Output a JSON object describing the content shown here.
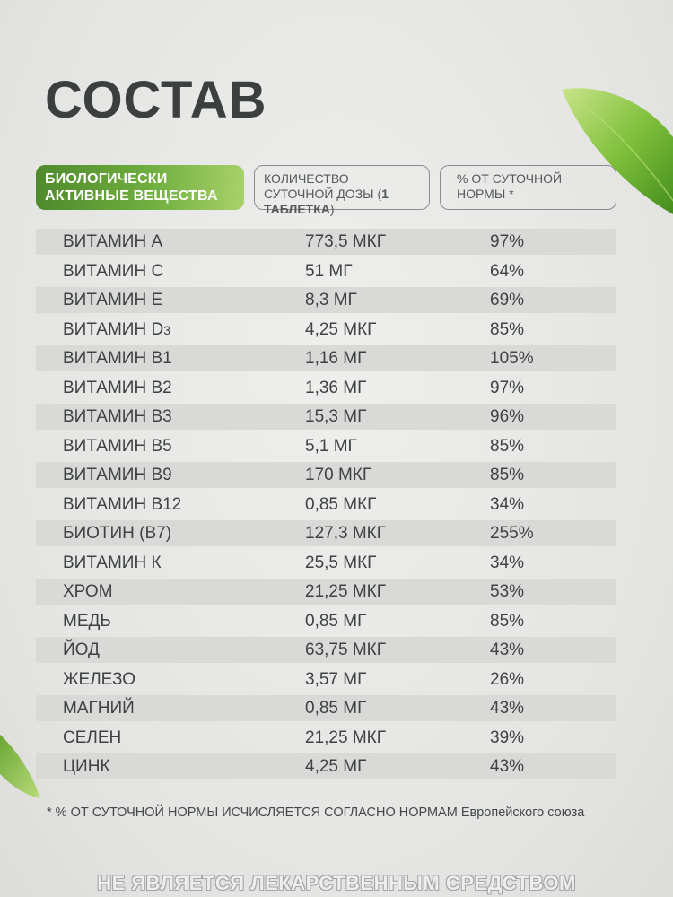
{
  "title": "СОСТАВ",
  "headers": {
    "substances": "БИОЛОГИЧЕСКИ АКТИВНЫЕ ВЕЩЕСТВА",
    "quantity_prefix": "КОЛИЧЕСТВО СУТОЧНОЙ ДОЗЫ (",
    "quantity_bold": "1 ТАБЛЕТКА",
    "quantity_suffix": ")",
    "percent": "% ОТ СУТОЧНОЙ НОРМЫ *"
  },
  "rows": [
    {
      "name": "ВИТАМИН А",
      "amount": "773,5 МКГ",
      "percent": "97%"
    },
    {
      "name": "ВИТАМИН С",
      "amount": "51 МГ",
      "percent": "64%"
    },
    {
      "name": "ВИТАМИН Е",
      "amount": "8,3 МГ",
      "percent": "69%"
    },
    {
      "name": "ВИТАМИН D",
      "name_sub": "3",
      "amount": "4,25 МКГ",
      "percent": "85%"
    },
    {
      "name": "ВИТАМИН В1",
      "amount": "1,16 МГ",
      "percent": "105%"
    },
    {
      "name": "ВИТАМИН В2",
      "amount": "1,36 МГ",
      "percent": "97%"
    },
    {
      "name": "ВИТАМИН В3",
      "amount": "15,3 МГ",
      "percent": "96%"
    },
    {
      "name": "ВИТАМИН В5",
      "amount": "5,1 МГ",
      "percent": "85%"
    },
    {
      "name": "ВИТАМИН В9",
      "amount": "170 МКГ",
      "percent": "85%"
    },
    {
      "name": "ВИТАМИН В12",
      "amount": "0,85 МКГ",
      "percent": "34%"
    },
    {
      "name": "БИОТИН (В7)",
      "amount": "127,3 МКГ",
      "percent": "255%"
    },
    {
      "name": "ВИТАМИН К",
      "amount": "25,5 МКГ",
      "percent": "34%"
    },
    {
      "name": "ХРОМ",
      "amount": "21,25 МКГ",
      "percent": "53%"
    },
    {
      "name": "МЕДЬ",
      "amount": "0,85 МГ",
      "percent": "85%"
    },
    {
      "name": "ЙОД",
      "amount": "63,75 МКГ",
      "percent": "43%"
    },
    {
      "name": "ЖЕЛЕЗО",
      "amount": "3,57 МГ",
      "percent": "26%"
    },
    {
      "name": "МАГНИЙ",
      "amount": "0,85 МГ",
      "percent": "43%"
    },
    {
      "name": "СЕЛЕН",
      "amount": "21,25 МКГ",
      "percent": "39%"
    },
    {
      "name": "ЦИНК",
      "amount": "4,25 МГ",
      "percent": "43%"
    }
  ],
  "footnote": "*  % ОТ СУТОЧНОЙ НОРМЫ ИСЧИСЛЯЕТСЯ СОГЛАСНО НОРМАМ Европейского союза",
  "disclaimer": "НЕ ЯВЛЯЕТСЯ ЛЕКАРСТВЕННЫМ СРЕДСТВОМ",
  "colors": {
    "background": "#e7e8e6",
    "accent_green": "#6fae3f",
    "row_shade": "#d9dad8",
    "text": "#3e4241"
  },
  "icons": [
    "leaf-decoration-top-right",
    "leaf-decoration-bottom-left"
  ]
}
